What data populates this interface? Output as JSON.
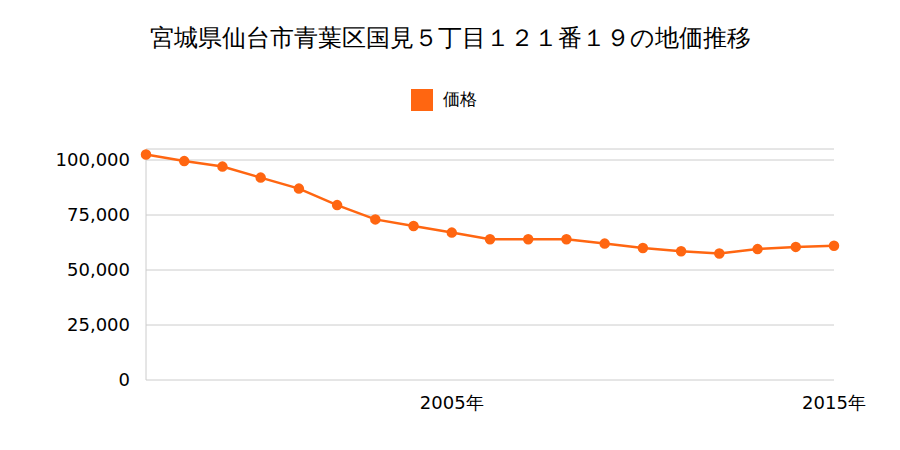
{
  "chart_data": {
    "type": "line",
    "title": "宮城県仙台市青葉区国見５丁目１２１番１９の地価推移",
    "categories": [
      null,
      null,
      null,
      null,
      null,
      null,
      null,
      null,
      "2005年",
      null,
      null,
      null,
      null,
      null,
      null,
      null,
      null,
      null,
      "2015年"
    ],
    "series": [
      {
        "name": "価格",
        "color": "#ff6611",
        "marker": "circle",
        "values": [
          102500,
          99500,
          97000,
          92000,
          87000,
          79500,
          73000,
          70000,
          67000,
          64000,
          64000,
          64000,
          62000,
          60000,
          58500,
          57500,
          59500,
          60500,
          61000
        ]
      }
    ],
    "ylim": [
      0,
      105000
    ],
    "yticks": [
      0,
      {
        "value": 25000,
        "label": "25,000"
      },
      {
        "value": 50000,
        "label": "50,000"
      },
      {
        "value": 75000,
        "label": "75,000"
      },
      {
        "value": 100000,
        "label": "100,000"
      }
    ],
    "grid": true,
    "legend": "top"
  }
}
